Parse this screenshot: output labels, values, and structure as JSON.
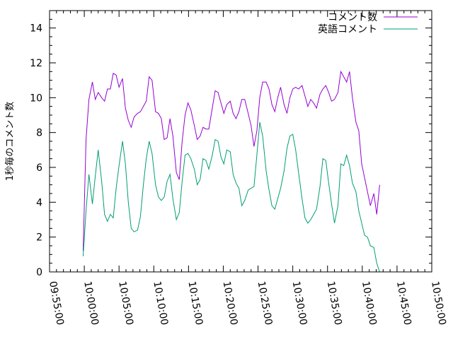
{
  "chart_data": {
    "type": "line",
    "ylabel": "1秒毎のコメント数",
    "xlabel": "",
    "ylim": [
      0,
      15
    ],
    "yticks": [
      0,
      2,
      4,
      6,
      8,
      10,
      12,
      14
    ],
    "xlim": [
      "09:55:00",
      "10:50:00"
    ],
    "xticks": [
      "09:55:00",
      "10:00:00",
      "10:05:00",
      "10:10:00",
      "10:15:00",
      "10:20:00",
      "10:25:00",
      "10:30:00",
      "10:35:00",
      "10:40:00",
      "10:45:00",
      "10:50:00"
    ],
    "grid": false,
    "legend_position": "top-right",
    "series": [
      {
        "name": "コメント数",
        "color": "#9400d3",
        "points": [
          [
            "09:59:50",
            1.2
          ],
          [
            "10:00:15",
            7.6
          ],
          [
            "10:00:40",
            9.9
          ],
          [
            "10:01:10",
            10.9
          ],
          [
            "10:01:35",
            9.9
          ],
          [
            "10:02:00",
            10.3
          ],
          [
            "10:02:30",
            10.0
          ],
          [
            "10:02:55",
            9.8
          ],
          [
            "10:03:20",
            10.5
          ],
          [
            "10:03:45",
            10.5
          ],
          [
            "10:04:10",
            11.4
          ],
          [
            "10:04:35",
            11.3
          ],
          [
            "10:05:00",
            10.6
          ],
          [
            "10:05:30",
            11.1
          ],
          [
            "10:05:55",
            9.4
          ],
          [
            "10:06:20",
            8.7
          ],
          [
            "10:06:45",
            8.3
          ],
          [
            "10:07:10",
            8.9
          ],
          [
            "10:07:40",
            9.1
          ],
          [
            "10:08:05",
            9.2
          ],
          [
            "10:08:30",
            9.5
          ],
          [
            "10:08:55",
            9.8
          ],
          [
            "10:09:20",
            11.2
          ],
          [
            "10:09:45",
            11.0
          ],
          [
            "10:10:15",
            9.2
          ],
          [
            "10:10:40",
            9.1
          ],
          [
            "10:11:05",
            8.8
          ],
          [
            "10:11:30",
            7.6
          ],
          [
            "10:11:55",
            7.7
          ],
          [
            "10:12:20",
            8.8
          ],
          [
            "10:12:45",
            7.8
          ],
          [
            "10:13:15",
            5.7
          ],
          [
            "10:13:40",
            5.3
          ],
          [
            "10:14:05",
            7.5
          ],
          [
            "10:14:30",
            9.0
          ],
          [
            "10:14:55",
            9.7
          ],
          [
            "10:15:20",
            9.3
          ],
          [
            "10:15:50",
            8.4
          ],
          [
            "10:16:15",
            7.6
          ],
          [
            "10:16:40",
            7.8
          ],
          [
            "10:17:05",
            8.3
          ],
          [
            "10:17:30",
            8.2
          ],
          [
            "10:17:55",
            8.2
          ],
          [
            "10:18:25",
            9.4
          ],
          [
            "10:18:50",
            10.4
          ],
          [
            "10:19:15",
            10.3
          ],
          [
            "10:19:40",
            9.7
          ],
          [
            "10:20:05",
            9.1
          ],
          [
            "10:20:30",
            9.6
          ],
          [
            "10:21:00",
            9.8
          ],
          [
            "10:21:25",
            9.1
          ],
          [
            "10:21:50",
            8.8
          ],
          [
            "10:22:15",
            9.2
          ],
          [
            "10:22:40",
            9.9
          ],
          [
            "10:23:05",
            9.9
          ],
          [
            "10:23:35",
            9.1
          ],
          [
            "10:24:00",
            8.4
          ],
          [
            "10:24:25",
            7.2
          ],
          [
            "10:24:50",
            8.1
          ],
          [
            "10:25:15",
            10.0
          ],
          [
            "10:25:40",
            10.9
          ],
          [
            "10:26:10",
            10.9
          ],
          [
            "10:26:35",
            10.5
          ],
          [
            "10:27:00",
            9.6
          ],
          [
            "10:27:25",
            9.2
          ],
          [
            "10:27:50",
            10.0
          ],
          [
            "10:28:15",
            10.6
          ],
          [
            "10:28:45",
            9.6
          ],
          [
            "10:29:10",
            9.1
          ],
          [
            "10:29:35",
            10.0
          ],
          [
            "10:30:00",
            10.5
          ],
          [
            "10:30:25",
            10.6
          ],
          [
            "10:30:50",
            10.5
          ],
          [
            "10:31:20",
            10.7
          ],
          [
            "10:31:45",
            10.1
          ],
          [
            "10:32:10",
            9.5
          ],
          [
            "10:32:35",
            9.9
          ],
          [
            "10:33:00",
            9.7
          ],
          [
            "10:33:25",
            9.4
          ],
          [
            "10:33:55",
            10.2
          ],
          [
            "10:34:20",
            10.5
          ],
          [
            "10:34:45",
            10.7
          ],
          [
            "10:35:10",
            10.3
          ],
          [
            "10:35:35",
            9.8
          ],
          [
            "10:36:00",
            9.9
          ],
          [
            "10:36:30",
            10.3
          ],
          [
            "10:36:55",
            11.5
          ],
          [
            "10:37:20",
            11.2
          ],
          [
            "10:37:45",
            10.9
          ],
          [
            "10:38:10",
            11.5
          ],
          [
            "10:38:35",
            10.0
          ],
          [
            "10:39:05",
            8.6
          ],
          [
            "10:39:30",
            8.1
          ],
          [
            "10:39:55",
            6.2
          ],
          [
            "10:40:20",
            5.4
          ],
          [
            "10:40:45",
            4.6
          ],
          [
            "10:41:10",
            3.8
          ],
          [
            "10:41:40",
            4.5
          ],
          [
            "10:42:05",
            3.3
          ],
          [
            "10:42:30",
            5.0
          ]
        ]
      },
      {
        "name": "英語コメント",
        "color": "#009e73",
        "points": [
          [
            "09:59:50",
            0.9
          ],
          [
            "10:00:15",
            3.5
          ],
          [
            "10:00:40",
            5.6
          ],
          [
            "10:01:10",
            3.9
          ],
          [
            "10:01:35",
            5.5
          ],
          [
            "10:02:00",
            7.0
          ],
          [
            "10:02:30",
            5.2
          ],
          [
            "10:02:55",
            3.3
          ],
          [
            "10:03:20",
            2.9
          ],
          [
            "10:03:45",
            3.3
          ],
          [
            "10:04:10",
            3.1
          ],
          [
            "10:04:35",
            4.8
          ],
          [
            "10:05:00",
            6.1
          ],
          [
            "10:05:30",
            7.5
          ],
          [
            "10:05:55",
            6.2
          ],
          [
            "10:06:20",
            4.0
          ],
          [
            "10:06:45",
            2.5
          ],
          [
            "10:07:10",
            2.3
          ],
          [
            "10:07:40",
            2.4
          ],
          [
            "10:08:05",
            3.2
          ],
          [
            "10:08:30",
            5.0
          ],
          [
            "10:08:55",
            6.5
          ],
          [
            "10:09:20",
            7.5
          ],
          [
            "10:09:45",
            6.8
          ],
          [
            "10:10:15",
            5.0
          ],
          [
            "10:10:40",
            4.3
          ],
          [
            "10:11:05",
            4.1
          ],
          [
            "10:11:30",
            4.3
          ],
          [
            "10:11:55",
            5.2
          ],
          [
            "10:12:20",
            5.6
          ],
          [
            "10:12:45",
            4.2
          ],
          [
            "10:13:15",
            3.0
          ],
          [
            "10:13:40",
            3.4
          ],
          [
            "10:14:05",
            5.2
          ],
          [
            "10:14:30",
            6.7
          ],
          [
            "10:14:55",
            6.8
          ],
          [
            "10:15:20",
            6.5
          ],
          [
            "10:15:50",
            5.9
          ],
          [
            "10:16:15",
            5.0
          ],
          [
            "10:16:40",
            5.3
          ],
          [
            "10:17:05",
            6.5
          ],
          [
            "10:17:30",
            6.4
          ],
          [
            "10:17:55",
            5.9
          ],
          [
            "10:18:25",
            6.7
          ],
          [
            "10:18:50",
            7.6
          ],
          [
            "10:19:15",
            7.5
          ],
          [
            "10:19:40",
            6.6
          ],
          [
            "10:20:05",
            6.2
          ],
          [
            "10:20:30",
            7.0
          ],
          [
            "10:21:00",
            6.9
          ],
          [
            "10:21:25",
            5.6
          ],
          [
            "10:21:50",
            5.1
          ],
          [
            "10:22:15",
            4.8
          ],
          [
            "10:22:40",
            3.8
          ],
          [
            "10:23:05",
            4.1
          ],
          [
            "10:23:35",
            4.7
          ],
          [
            "10:24:00",
            4.8
          ],
          [
            "10:24:25",
            4.9
          ],
          [
            "10:24:50",
            6.7
          ],
          [
            "10:25:15",
            8.6
          ],
          [
            "10:25:40",
            7.8
          ],
          [
            "10:26:10",
            5.8
          ],
          [
            "10:26:35",
            4.7
          ],
          [
            "10:27:00",
            3.8
          ],
          [
            "10:27:25",
            3.6
          ],
          [
            "10:27:50",
            4.2
          ],
          [
            "10:28:15",
            4.8
          ],
          [
            "10:28:45",
            5.8
          ],
          [
            "10:29:10",
            7.1
          ],
          [
            "10:29:35",
            7.8
          ],
          [
            "10:30:00",
            7.9
          ],
          [
            "10:30:25",
            7.0
          ],
          [
            "10:30:50",
            5.7
          ],
          [
            "10:31:20",
            4.2
          ],
          [
            "10:31:45",
            3.1
          ],
          [
            "10:32:10",
            2.8
          ],
          [
            "10:32:35",
            3.0
          ],
          [
            "10:33:00",
            3.3
          ],
          [
            "10:33:25",
            3.6
          ],
          [
            "10:33:55",
            4.9
          ],
          [
            "10:34:20",
            6.5
          ],
          [
            "10:34:45",
            6.4
          ],
          [
            "10:35:10",
            5.1
          ],
          [
            "10:35:35",
            3.9
          ],
          [
            "10:36:00",
            2.8
          ],
          [
            "10:36:30",
            3.8
          ],
          [
            "10:36:55",
            6.2
          ],
          [
            "10:37:20",
            6.1
          ],
          [
            "10:37:45",
            6.7
          ],
          [
            "10:38:10",
            6.1
          ],
          [
            "10:38:35",
            5.1
          ],
          [
            "10:39:05",
            4.6
          ],
          [
            "10:39:30",
            3.5
          ],
          [
            "10:39:55",
            2.8
          ],
          [
            "10:40:20",
            2.1
          ],
          [
            "10:40:45",
            2.0
          ],
          [
            "10:41:10",
            1.5
          ],
          [
            "10:41:40",
            1.4
          ],
          [
            "10:42:05",
            0.5
          ],
          [
            "10:42:30",
            0.0
          ]
        ]
      }
    ]
  }
}
